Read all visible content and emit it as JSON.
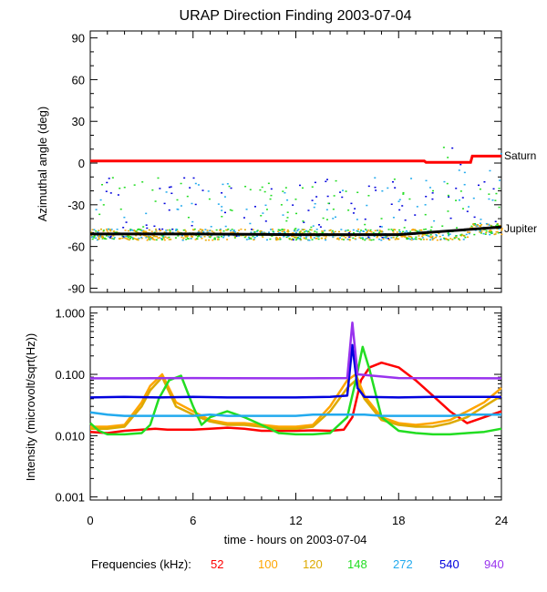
{
  "chart_data": [
    {
      "type": "scatter",
      "panel": "top",
      "title": "URAP Direction Finding  2003-07-04",
      "xlabel": "",
      "ylabel": "Azimuthal angle (deg)",
      "xlim": [
        0,
        24
      ],
      "ylim": [
        -93,
        95
      ],
      "yticks": [
        90,
        60,
        30,
        0,
        -30,
        -60,
        -90
      ],
      "ytick_labels": [
        "90",
        "60",
        "30",
        "0",
        "-30",
        "-60",
        "-90"
      ],
      "annotations": [
        "Saturn",
        "Jupiter"
      ],
      "series": [
        {
          "name": "Saturn",
          "color": "#ff0000",
          "kind": "line",
          "x": [
            0,
            19.5,
            19.6,
            22.2,
            22.3,
            24
          ],
          "y": [
            1.5,
            1.5,
            0.5,
            0.5,
            5,
            5
          ]
        },
        {
          "name": "Jupiter",
          "color": "#000000",
          "kind": "line",
          "x": [
            0,
            6,
            12,
            18,
            24
          ],
          "y": [
            -51,
            -51,
            -51.5,
            -51.5,
            -46
          ]
        },
        {
          "name": "scatter",
          "kind": "points",
          "center": -51,
          "spread": 4
        }
      ]
    },
    {
      "type": "line",
      "panel": "bottom",
      "xlabel": "time - hours on 2003-07-04",
      "ylabel": "Intensity (microvolt/sqrt(Hz))",
      "xlim": [
        0,
        24
      ],
      "ylim_log10": [
        -3.05,
        0.1
      ],
      "ytick_labels": [
        "1.000",
        "0.100",
        "0.010",
        "0.001"
      ],
      "xtick_labels": [
        "0",
        "6",
        "12",
        "18",
        "24"
      ],
      "series": [
        {
          "name": "52",
          "color": "#ff0000",
          "x": [
            0,
            1,
            2,
            3,
            3.8,
            4.5,
            5.5,
            6,
            7,
            8,
            9,
            10,
            11,
            12,
            13,
            14,
            14.8,
            15.3,
            15.8,
            16.3,
            17,
            18,
            19,
            20,
            21,
            22,
            23,
            24
          ],
          "y": [
            0.0115,
            0.011,
            0.012,
            0.0125,
            0.013,
            0.0125,
            0.0125,
            0.0125,
            0.013,
            0.0135,
            0.013,
            0.012,
            0.012,
            0.012,
            0.0122,
            0.012,
            0.0125,
            0.02,
            0.08,
            0.13,
            0.155,
            0.13,
            0.08,
            0.045,
            0.025,
            0.016,
            0.02,
            0.025
          ]
        },
        {
          "name": "100",
          "color": "#ffa500",
          "x": [
            0,
            1,
            2,
            3,
            3.5,
            4.2,
            5,
            6,
            7,
            8,
            9,
            10,
            11,
            12,
            13,
            14,
            15,
            15.5,
            16,
            17,
            18,
            19,
            20,
            21,
            22,
            23,
            24
          ],
          "y": [
            0.014,
            0.014,
            0.015,
            0.035,
            0.065,
            0.1,
            0.035,
            0.025,
            0.018,
            0.016,
            0.016,
            0.015,
            0.014,
            0.014,
            0.015,
            0.03,
            0.08,
            0.1,
            0.045,
            0.02,
            0.016,
            0.015,
            0.016,
            0.018,
            0.025,
            0.035,
            0.06
          ]
        },
        {
          "name": "120",
          "color": "#ddaa00",
          "x": [
            0,
            1,
            2,
            3,
            3.5,
            4.2,
            5,
            6,
            7,
            8,
            9,
            10,
            11,
            12,
            13,
            14,
            15,
            15.5,
            16,
            17,
            18,
            19,
            20,
            21,
            22,
            23,
            24
          ],
          "y": [
            0.013,
            0.013,
            0.014,
            0.03,
            0.055,
            0.09,
            0.03,
            0.022,
            0.017,
            0.015,
            0.015,
            0.014,
            0.013,
            0.013,
            0.014,
            0.025,
            0.06,
            0.08,
            0.04,
            0.018,
            0.015,
            0.014,
            0.014,
            0.016,
            0.02,
            0.03,
            0.045
          ]
        },
        {
          "name": "148",
          "color": "#22dd22",
          "x": [
            0,
            0.5,
            1,
            2,
            3,
            3.5,
            4,
            4.6,
            5.3,
            6,
            6.5,
            7,
            8,
            9,
            10,
            11,
            12,
            13,
            14,
            15,
            15.5,
            15.9,
            16.3,
            17,
            18,
            19,
            20,
            21,
            22,
            23,
            24
          ],
          "y": [
            0.016,
            0.012,
            0.0105,
            0.0105,
            0.011,
            0.015,
            0.04,
            0.08,
            0.095,
            0.03,
            0.015,
            0.02,
            0.025,
            0.02,
            0.015,
            0.011,
            0.0105,
            0.0105,
            0.011,
            0.02,
            0.08,
            0.28,
            0.12,
            0.02,
            0.012,
            0.011,
            0.0105,
            0.0105,
            0.011,
            0.0115,
            0.013
          ]
        },
        {
          "name": "272",
          "color": "#22aaee",
          "x": [
            0,
            1,
            2,
            3,
            4,
            5,
            6,
            7,
            8,
            9,
            10,
            11,
            12,
            13,
            14,
            15,
            16,
            17,
            18,
            19,
            20,
            21,
            22,
            23,
            24
          ],
          "y": [
            0.024,
            0.022,
            0.021,
            0.021,
            0.021,
            0.021,
            0.021,
            0.022,
            0.021,
            0.021,
            0.021,
            0.021,
            0.021,
            0.022,
            0.022,
            0.022,
            0.022,
            0.021,
            0.021,
            0.021,
            0.021,
            0.021,
            0.022,
            0.022,
            0.022
          ]
        },
        {
          "name": "540",
          "color": "#0000dd",
          "x": [
            0,
            2,
            4,
            6,
            8,
            10,
            12,
            14,
            15,
            15.3,
            15.6,
            16,
            18,
            20,
            22,
            24
          ],
          "y": [
            0.042,
            0.043,
            0.042,
            0.043,
            0.042,
            0.042,
            0.042,
            0.043,
            0.045,
            0.3,
            0.06,
            0.043,
            0.042,
            0.043,
            0.043,
            0.043
          ]
        },
        {
          "name": "940",
          "color": "#9933ee",
          "x": [
            0,
            6,
            12,
            15,
            15.3,
            15.6,
            18,
            24
          ],
          "y": [
            0.086,
            0.087,
            0.086,
            0.087,
            0.7,
            0.1,
            0.087,
            0.086
          ]
        }
      ]
    }
  ],
  "legend": {
    "label": "Frequencies (kHz):",
    "items": [
      {
        "label": "52",
        "color": "#ff0000"
      },
      {
        "label": "100",
        "color": "#ffa500"
      },
      {
        "label": "120",
        "color": "#ddaa00"
      },
      {
        "label": "148",
        "color": "#22dd22"
      },
      {
        "label": "272",
        "color": "#22aaee"
      },
      {
        "label": "540",
        "color": "#0000dd"
      },
      {
        "label": "940",
        "color": "#9933ee"
      }
    ]
  }
}
